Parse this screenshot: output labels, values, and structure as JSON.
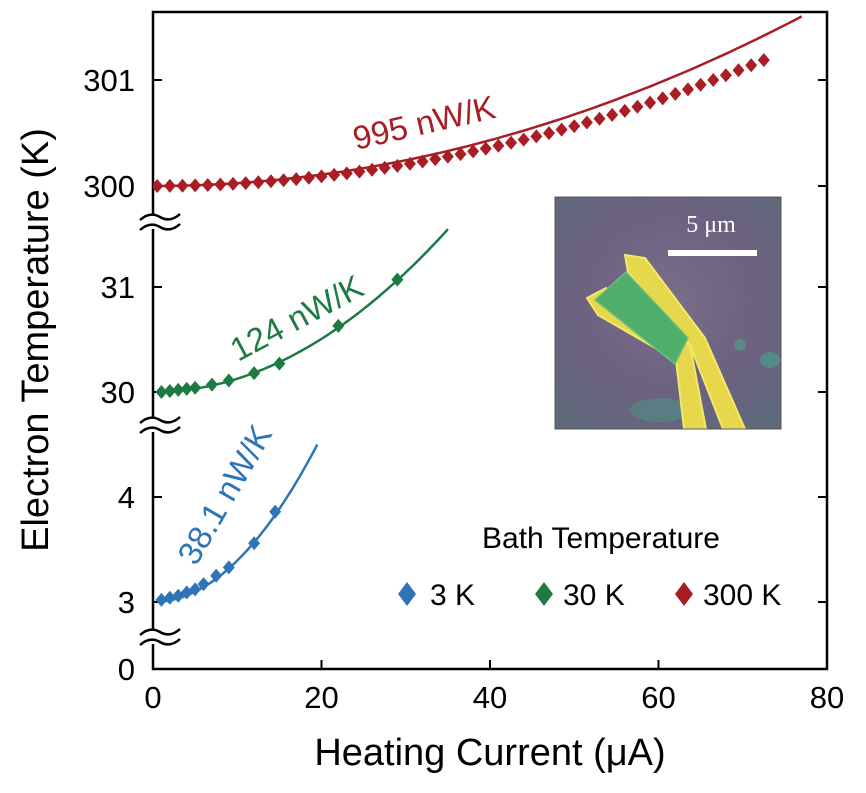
{
  "chart_data": {
    "type": "scatter",
    "xlabel": "Heating Current (μA)",
    "ylabel": "Electron Temperature (K)",
    "xlim": [
      0,
      80
    ],
    "x_ticks": [
      "0",
      "20",
      "40",
      "60",
      "80"
    ],
    "y_ticks": [
      "0",
      "3",
      "4",
      "30",
      "31",
      "300",
      "301"
    ],
    "axis_breaks": "broken y-axis with three segments: 3–4.5 K, 30–31.5 K, 300–301.6 K",
    "legend": {
      "title": "Bath Temperature",
      "placement": "bottom-right",
      "entries": [
        "3 K",
        "30 K",
        "300 K"
      ]
    },
    "series": [
      {
        "name": "3 K",
        "color": "#2f74b6",
        "fit_label": "38.1 nW/K",
        "x": [
          1.0,
          2.0,
          3.0,
          4.0,
          5.0,
          6.0,
          7.5,
          9.0,
          12.0,
          14.5
        ],
        "y": [
          3.02,
          3.04,
          3.06,
          3.09,
          3.12,
          3.17,
          3.25,
          3.33,
          3.56,
          3.86
        ],
        "fit": {
          "x_max": 19.5,
          "y_at_max": 4.5
        }
      },
      {
        "name": "30 K",
        "color": "#1d7a43",
        "fit_label": "124 nW/K",
        "x": [
          1.0,
          2.0,
          3.0,
          4.0,
          5.0,
          7.0,
          9.0,
          12.0,
          15.0,
          22.0,
          29.0
        ],
        "y": [
          30.0,
          30.01,
          30.02,
          30.03,
          30.04,
          30.07,
          30.11,
          30.18,
          30.27,
          30.63,
          31.07
        ],
        "fit": {
          "x_max": 35,
          "y_at_max": 31.55
        }
      },
      {
        "name": "300 K",
        "color": "#a81e24",
        "fit_label": "995 nW/K",
        "x_start": 0.5,
        "x_step": 1.5,
        "x_end": 72.5,
        "y_model": "300 + 0.000226 * x^2",
        "fit": {
          "x_max": 77,
          "y_at_max": 301.6
        }
      }
    ]
  },
  "inset": {
    "scale_bar_label": "5 μm"
  }
}
